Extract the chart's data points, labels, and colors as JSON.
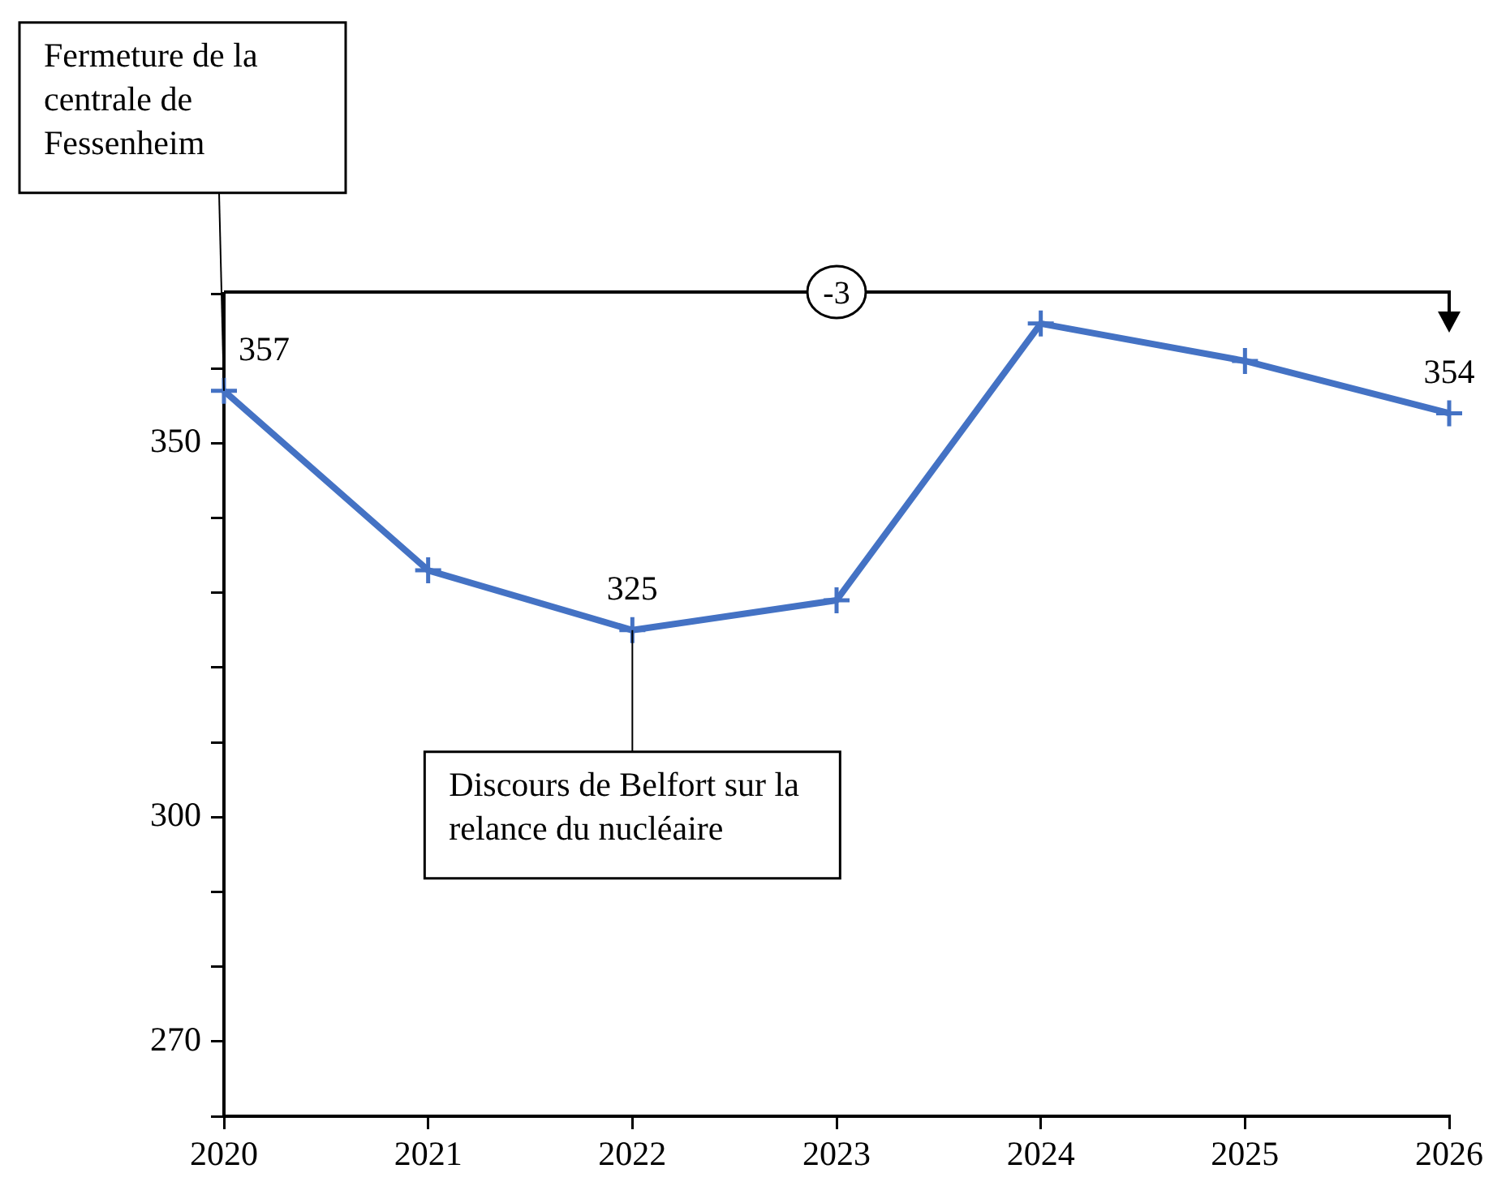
{
  "chart_data": {
    "type": "line",
    "x": [
      2020,
      2021,
      2022,
      2023,
      2024,
      2025,
      2026
    ],
    "series": [
      {
        "color": "#4472c4",
        "values": [
          357,
          333,
          325,
          329,
          366,
          361,
          354
        ],
        "value_labels": [
          "357",
          null,
          "325",
          null,
          null,
          null,
          "354"
        ]
      }
    ],
    "xlim": [
      2020,
      2026
    ],
    "xticks": [
      2020,
      2021,
      2022,
      2023,
      2024,
      2025,
      2026
    ],
    "ylim": [
      260,
      370
    ],
    "yticks": [
      {
        "value": 260,
        "label": null
      },
      270,
      {
        "value": 280,
        "label": null
      },
      {
        "value": 290,
        "label": null
      },
      300,
      {
        "value": 310,
        "label": null
      },
      {
        "value": 320,
        "label": null
      },
      {
        "value": 330,
        "label": null
      },
      {
        "value": 340,
        "label": null
      },
      350,
      {
        "value": 360,
        "label": null
      },
      {
        "value": 370,
        "label": null
      }
    ],
    "annotations": [
      {
        "text": "Fermeture de la centrale de Fessenheim",
        "x": 2020,
        "y": 357
      },
      {
        "text": "Discours de Belfort sur la relance du nucléaire",
        "x": 2022,
        "y": 325
      },
      "-3"
    ],
    "marker": "cross",
    "grid": false,
    "legend": false
  }
}
